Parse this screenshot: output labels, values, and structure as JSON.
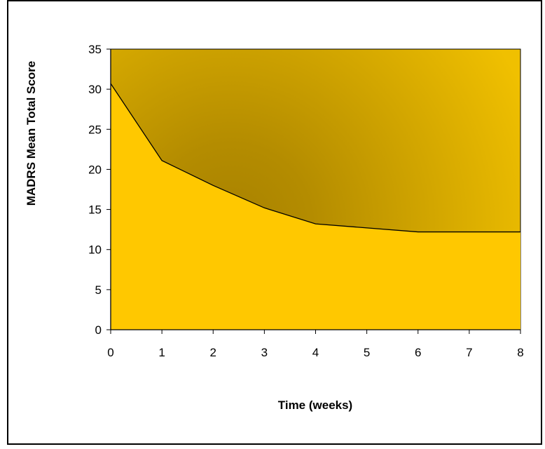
{
  "chart_data": {
    "type": "area",
    "title": "",
    "xlabel": "Time (weeks)",
    "ylabel": "MADRS Mean Total Score",
    "x": [
      0,
      1,
      2,
      3,
      4,
      6,
      8
    ],
    "y": [
      30.7,
      21.1,
      18.0,
      15.2,
      13.2,
      12.2,
      12.2
    ],
    "xlim": [
      0,
      8
    ],
    "ylim": [
      0,
      35
    ],
    "xticks": [
      "0",
      "1",
      "2",
      "3",
      "4",
      "5",
      "6",
      "7",
      "8"
    ],
    "yticks": [
      "0",
      "5",
      "10",
      "15",
      "20",
      "25",
      "30",
      "35"
    ],
    "grid": false,
    "legend": "none",
    "colors": {
      "area_fill": "#FFC800",
      "background_light": "#F0C000",
      "background_dark": "#A88200",
      "line": "#000000"
    }
  }
}
